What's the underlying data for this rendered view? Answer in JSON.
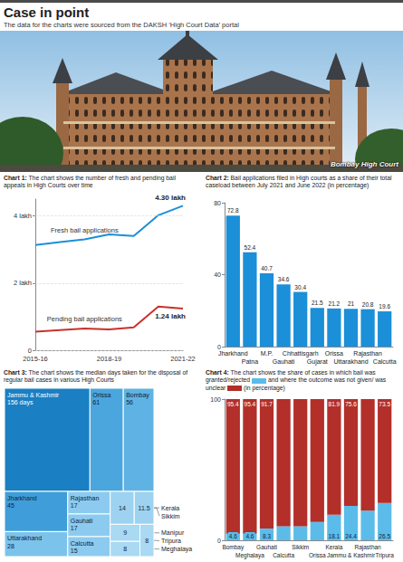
{
  "header": {
    "title": "Case in point",
    "subtitle": "The data for the charts were sourced from the DAKSH ‘High Court Data’ portal"
  },
  "photo": {
    "caption": "Bombay High Court"
  },
  "chart_data": [
    {
      "type": "line",
      "title": "Chart 1: The chart shows the number of fresh and pending bail appeals in High Courts over time",
      "categories": [
        "2015-16",
        null,
        null,
        "2018-19",
        null,
        null,
        "2021-22"
      ],
      "series": [
        {
          "name": "Fresh bail applications",
          "color": "#1b8fd8",
          "values": [
            3.13,
            3.22,
            3.3,
            3.45,
            3.4,
            4.02,
            4.3
          ]
        },
        {
          "name": "Pending bail applications",
          "color": "#c8312b",
          "values": [
            0.55,
            0.6,
            0.65,
            0.62,
            0.68,
            1.3,
            1.24
          ]
        }
      ],
      "ylim": [
        0,
        4.5
      ],
      "yticks": [
        0,
        {
          "value": 2,
          "label": "2 lakh"
        },
        {
          "value": 4,
          "label": "4 lakh"
        }
      ],
      "grid": true,
      "annotations": [
        {
          "text": "4.30 lakh",
          "x": "2021-22",
          "y": 4.3
        },
        {
          "text": "1.24 lakh",
          "x": "2021-22",
          "y": 1.24
        }
      ]
    },
    {
      "type": "bar",
      "title": "Chart 2: Bail applications filed in High courts as a share of their total caseload between July 2021 and June 2022 (in percentage)",
      "categories": [
        "Jharkhand",
        "Patna",
        "M.P.",
        "Gauhati",
        "Chhattisgarh",
        "Gujarat",
        "Orissa",
        "Uttarakhand",
        "Rajasthan",
        "Calcutta"
      ],
      "values": [
        72.8,
        52.4,
        40.7,
        34.6,
        30.4,
        21.5,
        21.2,
        21,
        20.8,
        19.6
      ],
      "color": "#1b8fd8",
      "ylim": [
        0,
        80
      ],
      "yticks": [
        0,
        40,
        80
      ],
      "grid": false,
      "data_labels": true
    },
    {
      "type": "treemap",
      "title": "Chart 3: The chart shows the median days taken for the disposal of regular bail cases in various High Courts",
      "categories": [
        "Jammu & Kashmir",
        "Orissa",
        "Bombay",
        "Jharkhand",
        "Uttarakhand",
        "Rajasthan",
        "Gauhati",
        "Calcutta",
        "Kerala",
        "Sikkim",
        "Manipur",
        "Meghalaya",
        "Tripura"
      ],
      "values": [
        156,
        61,
        56,
        45,
        28,
        17,
        17,
        15,
        14,
        11.5,
        9,
        8,
        8
      ],
      "value_labels": [
        "156 days",
        "61",
        "56",
        "45",
        "28",
        "17",
        "17",
        "15",
        "14",
        "11.5",
        "9",
        "8",
        "8"
      ],
      "colors": [
        "#1a7fc3",
        "#4aa6dd",
        "#5fb3e4",
        "#3f9ed9",
        "#7cc3ec",
        "#8ccbef",
        "#8ccbef",
        "#8ccbef",
        "#9dd3f1",
        "#9dd3f1",
        "#a9d9f3",
        "#a9d9f3",
        "#a9d9f3"
      ],
      "data_labels": true
    },
    {
      "type": "bar",
      "stacked": true,
      "title": [
        "Chart 4: The chart shows the share of cases in which bail was granted/rejected",
        "and where the outcome was not given/ was unclear",
        "(in percentage)"
      ],
      "categories": [
        "Bombay",
        "Meghalaya",
        "Gauhati",
        "Calcutta",
        "Sikkim",
        "Orissa",
        "Kerala",
        "Jammu & Kashmir",
        "Rajasthan",
        "Tripura"
      ],
      "series": [
        {
          "color": "#5bbce9",
          "values": [
            4.6,
            4.6,
            8.3,
            10,
            10,
            13,
            18.1,
            24.4,
            21,
            26.5
          ],
          "value_labels": [
            "4.6",
            "4.6",
            "8.3",
            null,
            null,
            null,
            "18.1",
            "24.4",
            null,
            "26.5"
          ]
        },
        {
          "color": "#b32f2a",
          "values": [
            95.4,
            95.4,
            91.7,
            90,
            90,
            87,
            81.9,
            75.6,
            79,
            73.5
          ],
          "value_labels": [
            "95.4",
            "95.4",
            "91.7",
            null,
            null,
            null,
            "81.9",
            "75.6",
            null,
            "73.5"
          ]
        }
      ],
      "ylim": [
        0,
        100
      ],
      "yticks": [
        0,
        100
      ],
      "grid": false,
      "data_labels": true
    }
  ]
}
